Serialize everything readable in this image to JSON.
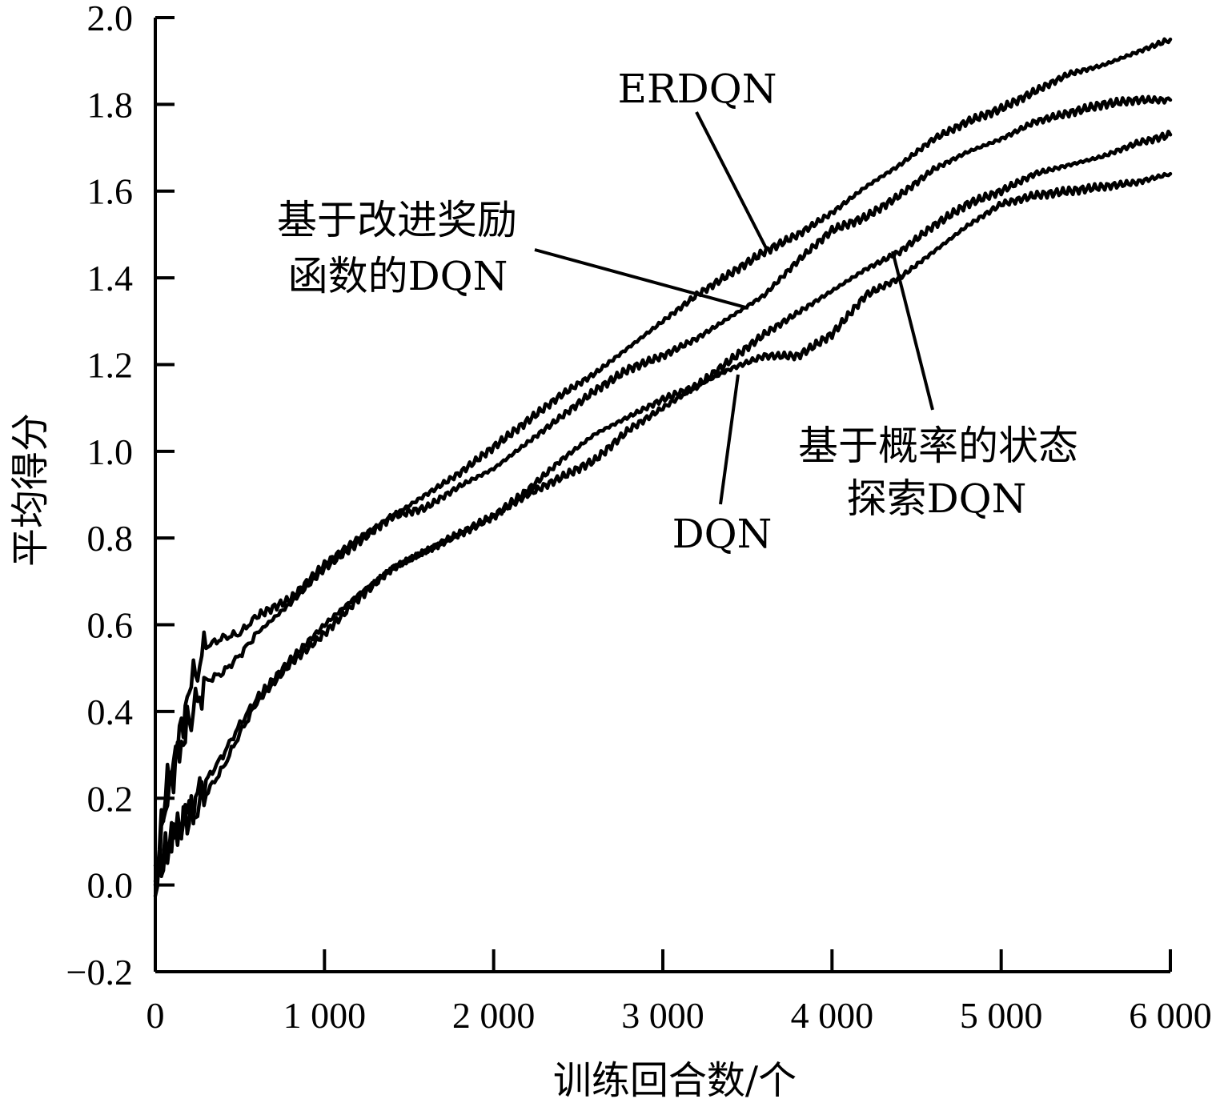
{
  "chart_data": {
    "type": "line",
    "xlabel": "训练回合数/个",
    "ylabel": "平均得分",
    "xlim": [
      0,
      6000
    ],
    "ylim": [
      -0.2,
      2.0
    ],
    "x_ticks": [
      {
        "value": 0,
        "label": "0"
      },
      {
        "value": 1000,
        "label": "1 000"
      },
      {
        "value": 2000,
        "label": "2 000"
      },
      {
        "value": 3000,
        "label": "3 000"
      },
      {
        "value": 4000,
        "label": "4 000"
      },
      {
        "value": 5000,
        "label": "5 000"
      },
      {
        "value": 6000,
        "label": "6 000"
      }
    ],
    "y_ticks": [
      {
        "value": 2.0,
        "label": "2.0"
      },
      {
        "value": 1.8,
        "label": "1.8"
      },
      {
        "value": 1.6,
        "label": "1.6"
      },
      {
        "value": 1.4,
        "label": "1.4"
      },
      {
        "value": 1.2,
        "label": "1.2"
      },
      {
        "value": 1.0,
        "label": "1.0"
      },
      {
        "value": 0.8,
        "label": "0.8"
      },
      {
        "value": 0.6,
        "label": "0.6"
      },
      {
        "value": 0.4,
        "label": "0.4"
      },
      {
        "value": 0.2,
        "label": "0.2"
      },
      {
        "value": 0.0,
        "label": "0.0"
      },
      {
        "value": -0.2,
        "label": "−0.2"
      }
    ],
    "grid": false,
    "series": [
      {
        "name": "ERDQN",
        "x": [
          0,
          60,
          120,
          200,
          300,
          400,
          500,
          600,
          800,
          1000,
          1200,
          1400,
          1600,
          1800,
          2000,
          2200,
          2400,
          2600,
          2800,
          3000,
          3200,
          3400,
          3600,
          3800,
          4000,
          4200,
          4400,
          4600,
          4800,
          5000,
          5200,
          5400,
          5600,
          5800,
          6000
        ],
        "y": [
          0.0,
          0.22,
          0.3,
          0.45,
          0.55,
          0.57,
          0.58,
          0.62,
          0.66,
          0.74,
          0.8,
          0.85,
          0.9,
          0.95,
          1.01,
          1.07,
          1.13,
          1.18,
          1.24,
          1.3,
          1.36,
          1.41,
          1.46,
          1.5,
          1.55,
          1.61,
          1.66,
          1.72,
          1.76,
          1.79,
          1.83,
          1.87,
          1.89,
          1.92,
          1.95
        ]
      },
      {
        "name": "基于改进奖励函数的DQN",
        "x": [
          0,
          60,
          120,
          200,
          300,
          400,
          500,
          600,
          800,
          1000,
          1200,
          1400,
          1600,
          1800,
          2000,
          2200,
          2400,
          2600,
          2800,
          3000,
          3200,
          3400,
          3600,
          3800,
          4000,
          4200,
          4400,
          4600,
          4800,
          5000,
          5200,
          5400,
          5600,
          5800,
          6000
        ],
        "y": [
          0.0,
          0.18,
          0.28,
          0.38,
          0.47,
          0.49,
          0.53,
          0.58,
          0.65,
          0.73,
          0.79,
          0.85,
          0.87,
          0.92,
          0.96,
          1.02,
          1.08,
          1.14,
          1.19,
          1.22,
          1.26,
          1.31,
          1.36,
          1.44,
          1.51,
          1.54,
          1.59,
          1.65,
          1.69,
          1.72,
          1.76,
          1.78,
          1.8,
          1.81,
          1.81
        ]
      },
      {
        "name": "基于概率的状态探索DQN",
        "x": [
          0,
          60,
          120,
          200,
          300,
          400,
          500,
          600,
          800,
          1000,
          1200,
          1400,
          1600,
          1800,
          2000,
          2200,
          2400,
          2600,
          2800,
          3000,
          3200,
          3400,
          3600,
          3800,
          4000,
          4200,
          4400,
          4600,
          4800,
          5000,
          5200,
          5400,
          5600,
          5800,
          6000
        ],
        "y": [
          0.0,
          0.08,
          0.13,
          0.17,
          0.24,
          0.3,
          0.37,
          0.43,
          0.52,
          0.6,
          0.67,
          0.73,
          0.77,
          0.81,
          0.85,
          0.91,
          0.98,
          1.04,
          1.08,
          1.12,
          1.15,
          1.21,
          1.27,
          1.32,
          1.37,
          1.42,
          1.46,
          1.52,
          1.57,
          1.6,
          1.64,
          1.66,
          1.68,
          1.71,
          1.73
        ]
      },
      {
        "name": "DQN",
        "x": [
          0,
          60,
          120,
          200,
          300,
          400,
          500,
          600,
          800,
          1000,
          1200,
          1400,
          1600,
          1800,
          2000,
          2200,
          2400,
          2600,
          2800,
          3000,
          3200,
          3400,
          3600,
          3800,
          4000,
          4200,
          4400,
          4600,
          4800,
          5000,
          5200,
          5400,
          5600,
          5800,
          6000
        ],
        "y": [
          0.0,
          0.07,
          0.12,
          0.15,
          0.21,
          0.27,
          0.35,
          0.42,
          0.51,
          0.58,
          0.66,
          0.73,
          0.77,
          0.81,
          0.85,
          0.9,
          0.94,
          0.98,
          1.05,
          1.1,
          1.15,
          1.19,
          1.22,
          1.22,
          1.27,
          1.36,
          1.4,
          1.46,
          1.52,
          1.57,
          1.59,
          1.6,
          1.61,
          1.62,
          1.64
        ]
      }
    ],
    "annotations": [
      {
        "series": "ERDQN",
        "lines": [
          "ERDQN"
        ],
        "point_x": 3600,
        "point_y": 1.46
      },
      {
        "series": "基于改进奖励函数的DQN",
        "lines": [
          "基于改进奖励",
          "函数的DQN"
        ],
        "point_x": 3500,
        "point_y": 1.33
      },
      {
        "series": "基于概率的状态探索DQN",
        "lines": [
          "基于概率的状态",
          "探索DQN"
        ],
        "point_x": 4350,
        "point_y": 1.46
      },
      {
        "series": "DQN",
        "lines": [
          "DQN"
        ],
        "point_x": 3450,
        "point_y": 1.19
      }
    ]
  }
}
